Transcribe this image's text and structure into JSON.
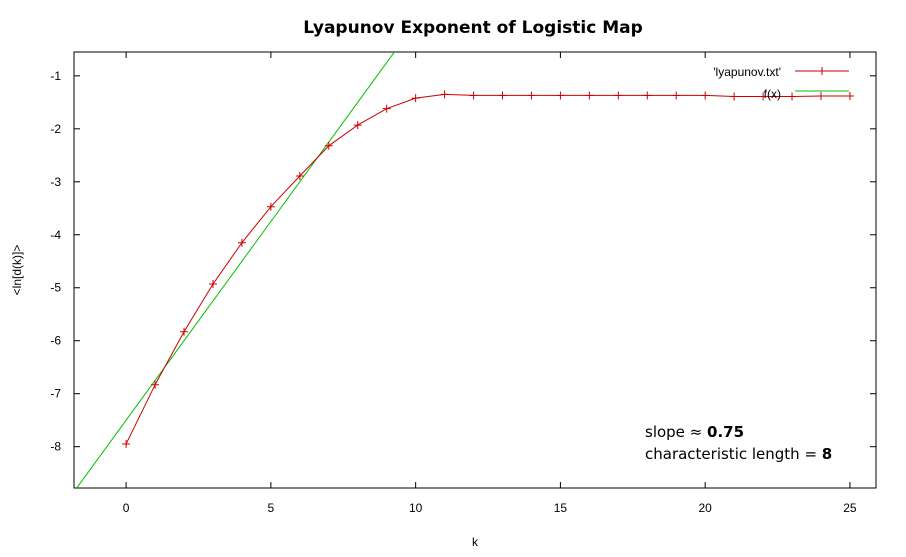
{
  "chart_data": {
    "type": "line",
    "title": "Lyapunov Exponent of Logistic Map",
    "xlabel": "k",
    "ylabel": "<ln[d(k)]>",
    "xlim": [
      -1.8,
      25.9
    ],
    "ylim": [
      -8.78,
      -0.55
    ],
    "xticks": [
      0,
      5,
      10,
      15,
      20,
      25
    ],
    "yticks": [
      -1,
      -2,
      -3,
      -4,
      -5,
      -6,
      -7,
      -8
    ],
    "grid": false,
    "legend_position": "top-right",
    "series": [
      {
        "name": "'lyapunov.txt'",
        "style": "linespoints",
        "color": "#cc0000",
        "x": [
          0,
          1,
          2,
          3,
          4,
          5,
          6,
          7,
          8,
          9,
          10,
          11,
          12,
          13,
          14,
          15,
          16,
          17,
          18,
          19,
          20,
          21,
          22,
          23,
          24,
          25
        ],
        "y": [
          -7.95,
          -6.83,
          -5.83,
          -4.93,
          -4.15,
          -3.47,
          -2.89,
          -2.32,
          -1.93,
          -1.62,
          -1.42,
          -1.35,
          -1.37,
          -1.37,
          -1.37,
          -1.37,
          -1.37,
          -1.37,
          -1.37,
          -1.37,
          -1.37,
          -1.39,
          -1.39,
          -1.39,
          -1.38,
          -1.38
        ]
      },
      {
        "name": "f(x)",
        "style": "line",
        "color": "#00c000",
        "function": {
          "slope": 0.75,
          "intercept": -7.5
        }
      }
    ],
    "annotations": [
      {
        "prefix": "slope ≈ ",
        "value": "0.75"
      },
      {
        "prefix": "characteristic length = ",
        "value": "8"
      }
    ]
  }
}
